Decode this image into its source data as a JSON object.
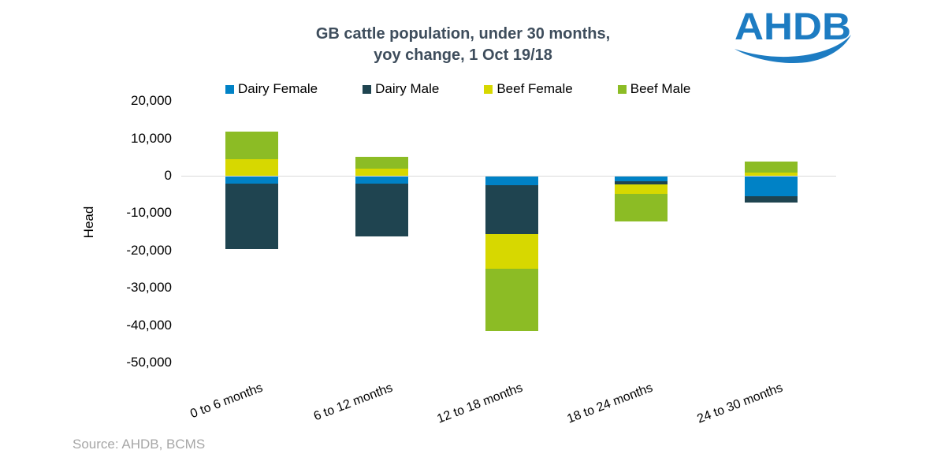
{
  "header": {
    "title_line1": "GB cattle population, under 30 months,",
    "title_line2": "yoy change, 1 Oct 19/18",
    "logo_text": "AHDB"
  },
  "footer": {
    "source": "Source: AHDB, BCMS"
  },
  "colors": {
    "title": "#3E4D5C",
    "logo_blue": "#1D7CC2",
    "source_gray": "#A6A6A6",
    "gridline": "#D9D9D9",
    "axis_text": "#000000",
    "background": "#FFFFFF"
  },
  "chart_data": {
    "type": "bar",
    "stacked": true,
    "title": "GB cattle population, under 30 months, yoy change, 1 Oct 19/18",
    "xlabel": "",
    "ylabel": "Head",
    "ylim": [
      -50000,
      20000
    ],
    "ytick_step": 10000,
    "grid": "zero-line-only",
    "legend_position": "top",
    "categories": [
      "0 to 6 months",
      "6 to 12 months",
      "12 to 18 months",
      "18 to 24 months",
      "24 to 30 months"
    ],
    "series": [
      {
        "name": "Dairy Female",
        "color": "#0082C6",
        "values": [
          -2000,
          -1800,
          -2300,
          -1300,
          -5300
        ]
      },
      {
        "name": "Dairy Male",
        "color": "#1F4450",
        "values": [
          -17400,
          -14200,
          -13000,
          -900,
          -1700
        ]
      },
      {
        "name": "Beef Female",
        "color": "#D7D800",
        "values": [
          4400,
          2000,
          -9400,
          -2400,
          800
        ]
      },
      {
        "name": "Beef Male",
        "color": "#8CBC25",
        "values": [
          7400,
          3100,
          -16600,
          -7400,
          3000
        ]
      }
    ],
    "yticks": [
      {
        "value": 20000,
        "label": "20,000"
      },
      {
        "value": 10000,
        "label": "10,000"
      },
      {
        "value": 0,
        "label": "0"
      },
      {
        "value": -10000,
        "label": "-10,000"
      },
      {
        "value": -20000,
        "label": "-20,000"
      },
      {
        "value": -30000,
        "label": "-30,000"
      },
      {
        "value": -40000,
        "label": "-40,000"
      },
      {
        "value": -50000,
        "label": "-50,000"
      }
    ]
  }
}
